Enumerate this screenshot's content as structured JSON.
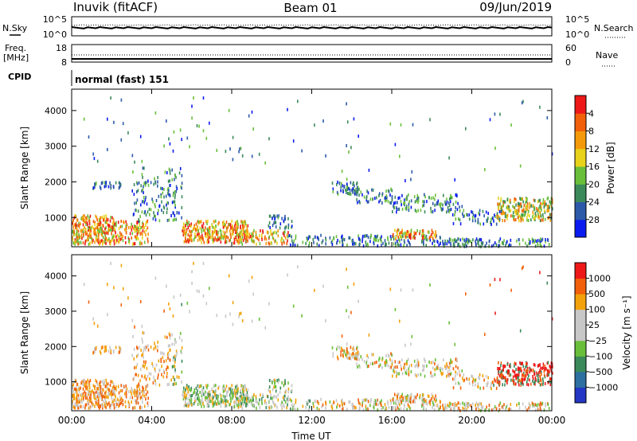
{
  "header": {
    "station": "Inuvik (fitACF)",
    "beam": "Beam 01",
    "date": "09/Jun/2019"
  },
  "noise_panel": {
    "left_label": "N.Sky",
    "right_label": "N.Search",
    "left_ticks": [
      "10^5",
      "10^0"
    ],
    "right_ticks": [
      "10^5",
      "10^0"
    ]
  },
  "freq_panel": {
    "left_label_1": "Freq.",
    "left_label_2": "[MHz]",
    "right_label": "Nave",
    "left_ticks": [
      "18",
      "8"
    ],
    "right_ticks": [
      "60",
      "0"
    ]
  },
  "cpid": {
    "label": "CPID",
    "text": "normal (fast) 151"
  },
  "chart_data": [
    {
      "type": "heatmap",
      "ylabel": "Slant Range [km]",
      "xlabel": "",
      "ylim": [
        180,
        4600
      ],
      "y_ticks": [
        1000,
        2000,
        3000,
        4000
      ],
      "x_ticks": [
        0,
        4,
        8,
        12,
        16,
        20,
        24
      ],
      "colorbar": {
        "label": "Power [dB]",
        "colors": [
          "#0a1bf0",
          "#2c5aa8",
          "#3b8a5a",
          "#6abf3a",
          "#e8d21a",
          "#f49a0a",
          "#f2600a",
          "#ee1818"
        ],
        "ticks": [
          "4",
          "8",
          "12",
          "16",
          "20",
          "24",
          "28"
        ]
      }
    },
    {
      "type": "heatmap",
      "ylabel": "Slant Range [km]",
      "xlabel": "Time UT",
      "ylim": [
        180,
        4600
      ],
      "y_ticks": [
        1000,
        2000,
        3000,
        4000
      ],
      "x_ticks": [
        0,
        4,
        8,
        12,
        16,
        20,
        24
      ],
      "x_tick_labels": [
        "00:00",
        "04:00",
        "08:00",
        "12:00",
        "16:00",
        "20:00",
        "00:00"
      ],
      "colorbar": {
        "label": "Velocity [m s⁻¹]",
        "colors": [
          "#2436c4",
          "#2c6fa0",
          "#3b8a5a",
          "#6abf3a",
          "#c8c8c8",
          "#c8c8c8",
          "#f2a20a",
          "#f2600a",
          "#ee1818"
        ],
        "ticks": [
          "1000",
          "500",
          "100",
          "25",
          "−25",
          "−100",
          "−500",
          "−1000"
        ]
      }
    }
  ]
}
